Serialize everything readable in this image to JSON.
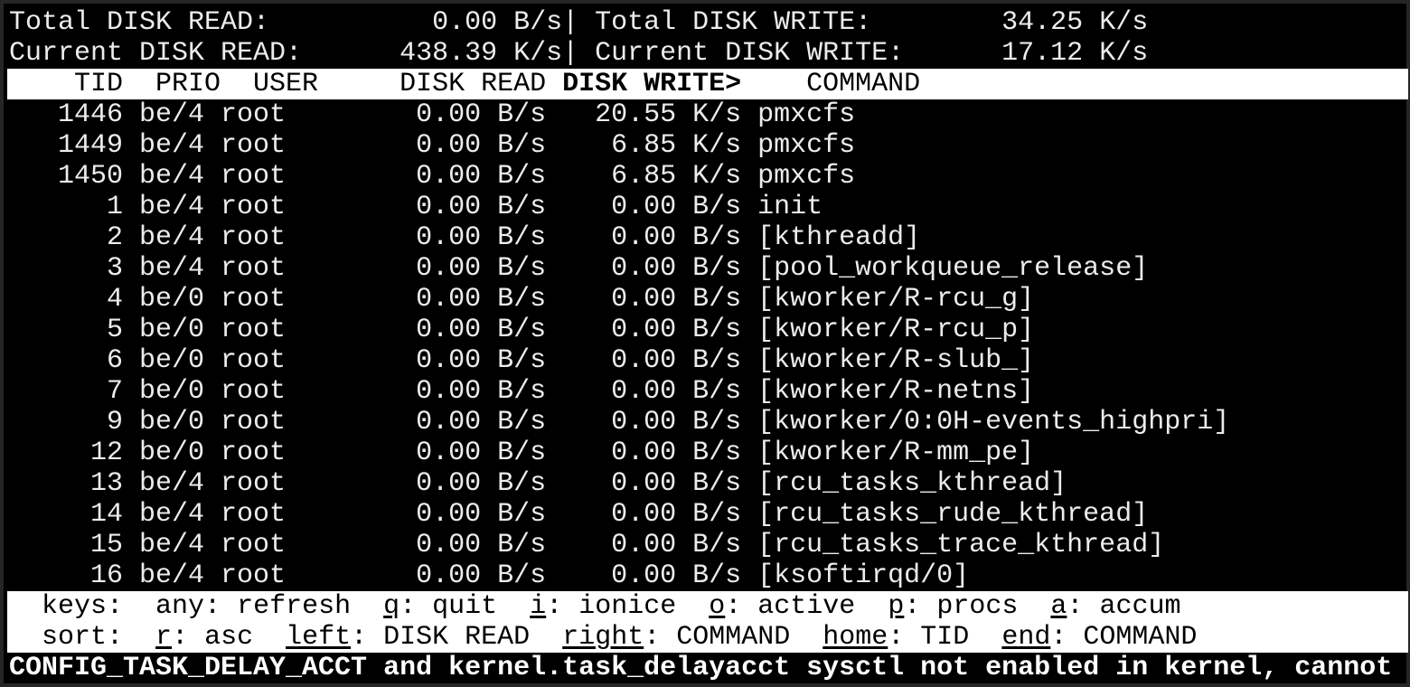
{
  "summary": {
    "total_read_label": "Total DISK READ:",
    "total_read": "0.00 B/s",
    "total_write_label": "Total DISK WRITE:",
    "total_write": "34.25 K/s",
    "current_read_label": "Current DISK READ:",
    "current_read": "438.39 K/s",
    "current_write_label": "Current DISK WRITE:",
    "current_write": "17.12 K/s",
    "separator": "|"
  },
  "columns": {
    "tid": "TID",
    "prio": "PRIO",
    "user": "USER",
    "read": "DISK READ",
    "write": "DISK WRITE>",
    "command": "COMMAND"
  },
  "rows": [
    {
      "tid": "1446",
      "prio": "be/4",
      "user": "root",
      "read": "0.00 B/s",
      "write": "20.55 K/s",
      "command": "pmxcfs"
    },
    {
      "tid": "1449",
      "prio": "be/4",
      "user": "root",
      "read": "0.00 B/s",
      "write": "6.85 K/s",
      "command": "pmxcfs"
    },
    {
      "tid": "1450",
      "prio": "be/4",
      "user": "root",
      "read": "0.00 B/s",
      "write": "6.85 K/s",
      "command": "pmxcfs"
    },
    {
      "tid": "1",
      "prio": "be/4",
      "user": "root",
      "read": "0.00 B/s",
      "write": "0.00 B/s",
      "command": "init"
    },
    {
      "tid": "2",
      "prio": "be/4",
      "user": "root",
      "read": "0.00 B/s",
      "write": "0.00 B/s",
      "command": "[kthreadd]"
    },
    {
      "tid": "3",
      "prio": "be/4",
      "user": "root",
      "read": "0.00 B/s",
      "write": "0.00 B/s",
      "command": "[pool_workqueue_release]"
    },
    {
      "tid": "4",
      "prio": "be/0",
      "user": "root",
      "read": "0.00 B/s",
      "write": "0.00 B/s",
      "command": "[kworker/R-rcu_g]"
    },
    {
      "tid": "5",
      "prio": "be/0",
      "user": "root",
      "read": "0.00 B/s",
      "write": "0.00 B/s",
      "command": "[kworker/R-rcu_p]"
    },
    {
      "tid": "6",
      "prio": "be/0",
      "user": "root",
      "read": "0.00 B/s",
      "write": "0.00 B/s",
      "command": "[kworker/R-slub_]"
    },
    {
      "tid": "7",
      "prio": "be/0",
      "user": "root",
      "read": "0.00 B/s",
      "write": "0.00 B/s",
      "command": "[kworker/R-netns]"
    },
    {
      "tid": "9",
      "prio": "be/0",
      "user": "root",
      "read": "0.00 B/s",
      "write": "0.00 B/s",
      "command": "[kworker/0:0H-events_highpri]"
    },
    {
      "tid": "12",
      "prio": "be/0",
      "user": "root",
      "read": "0.00 B/s",
      "write": "0.00 B/s",
      "command": "[kworker/R-mm_pe]"
    },
    {
      "tid": "13",
      "prio": "be/4",
      "user": "root",
      "read": "0.00 B/s",
      "write": "0.00 B/s",
      "command": "[rcu_tasks_kthread]"
    },
    {
      "tid": "14",
      "prio": "be/4",
      "user": "root",
      "read": "0.00 B/s",
      "write": "0.00 B/s",
      "command": "[rcu_tasks_rude_kthread]"
    },
    {
      "tid": "15",
      "prio": "be/4",
      "user": "root",
      "read": "0.00 B/s",
      "write": "0.00 B/s",
      "command": "[rcu_tasks_trace_kthread]"
    },
    {
      "tid": "16",
      "prio": "be/4",
      "user": "root",
      "read": "0.00 B/s",
      "write": "0.00 B/s",
      "command": "[ksoftirqd/0]"
    }
  ],
  "keys": {
    "label": "keys:",
    "items": [
      {
        "key": "any",
        "desc": "refresh",
        "underline": false
      },
      {
        "key": "q",
        "desc": "quit",
        "underline": true
      },
      {
        "key": "i",
        "desc": "ionice",
        "underline": true
      },
      {
        "key": "o",
        "desc": "active",
        "underline": true
      },
      {
        "key": "p",
        "desc": "procs",
        "underline": true
      },
      {
        "key": "a",
        "desc": "accum",
        "underline": true
      }
    ]
  },
  "sort": {
    "label": "sort:",
    "items": [
      {
        "key": "r",
        "desc": "asc",
        "underline": true
      },
      {
        "key": "left",
        "desc": "DISK READ",
        "underline": true
      },
      {
        "key": "right",
        "desc": "COMMAND",
        "underline": true
      },
      {
        "key": "home",
        "desc": "TID",
        "underline": true
      },
      {
        "key": "end",
        "desc": "COMMAND",
        "underline": true
      }
    ]
  },
  "footer": "CONFIG_TASK_DELAY_ACCT and kernel.task_delayacct sysctl not enabled in kernel, cannot"
}
